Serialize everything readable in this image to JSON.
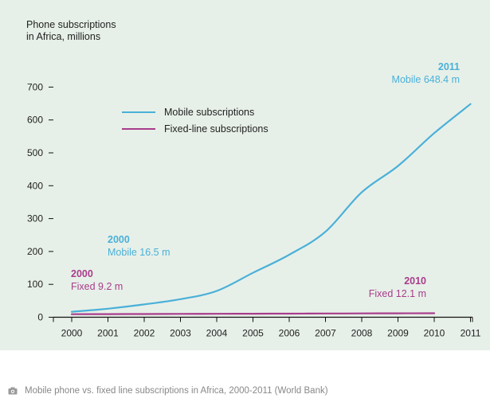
{
  "chart_data": {
    "type": "line",
    "title": "Phone subscriptions\nin Africa, millions",
    "x": [
      2000,
      2001,
      2002,
      2003,
      2004,
      2005,
      2006,
      2007,
      2008,
      2009,
      2010,
      2011
    ],
    "ylim": [
      0,
      700
    ],
    "yticks": [
      0,
      100,
      200,
      300,
      400,
      500,
      600,
      700
    ],
    "grid": false,
    "legend_position": "upper-left",
    "series": [
      {
        "name": "Mobile subscriptions",
        "color": "#4ab0d9",
        "x": [
          2000,
          2001,
          2002,
          2003,
          2004,
          2005,
          2006,
          2007,
          2008,
          2009,
          2010,
          2011
        ],
        "values": [
          16.5,
          26,
          39,
          55,
          80,
          135,
          190,
          260,
          380,
          460,
          560,
          648.4
        ]
      },
      {
        "name": "Fixed-line subscriptions",
        "color": "#a83c8c",
        "x": [
          2000,
          2001,
          2002,
          2003,
          2004,
          2005,
          2006,
          2007,
          2008,
          2009,
          2010
        ],
        "values": [
          9.2,
          9.5,
          9.8,
          10.1,
          10.4,
          10.7,
          11,
          11.3,
          11.6,
          11.9,
          12.1
        ]
      }
    ],
    "annotations": [
      {
        "year_label": "2011",
        "text": "Mobile 648.4 m",
        "color": "#4ab0d9"
      },
      {
        "year_label": "2000",
        "text": "Mobile 16.5 m",
        "color": "#4ab0d9"
      },
      {
        "year_label": "2000",
        "text": "Fixed 9.2 m",
        "color": "#a83c8c"
      },
      {
        "year_label": "2010",
        "text": "Fixed 12.1 m",
        "color": "#a83c8c"
      }
    ]
  },
  "caption": {
    "icon": "camera-icon",
    "text": "Mobile phone vs. fixed line subscriptions in Africa, 2000-2011 (World Bank)"
  }
}
